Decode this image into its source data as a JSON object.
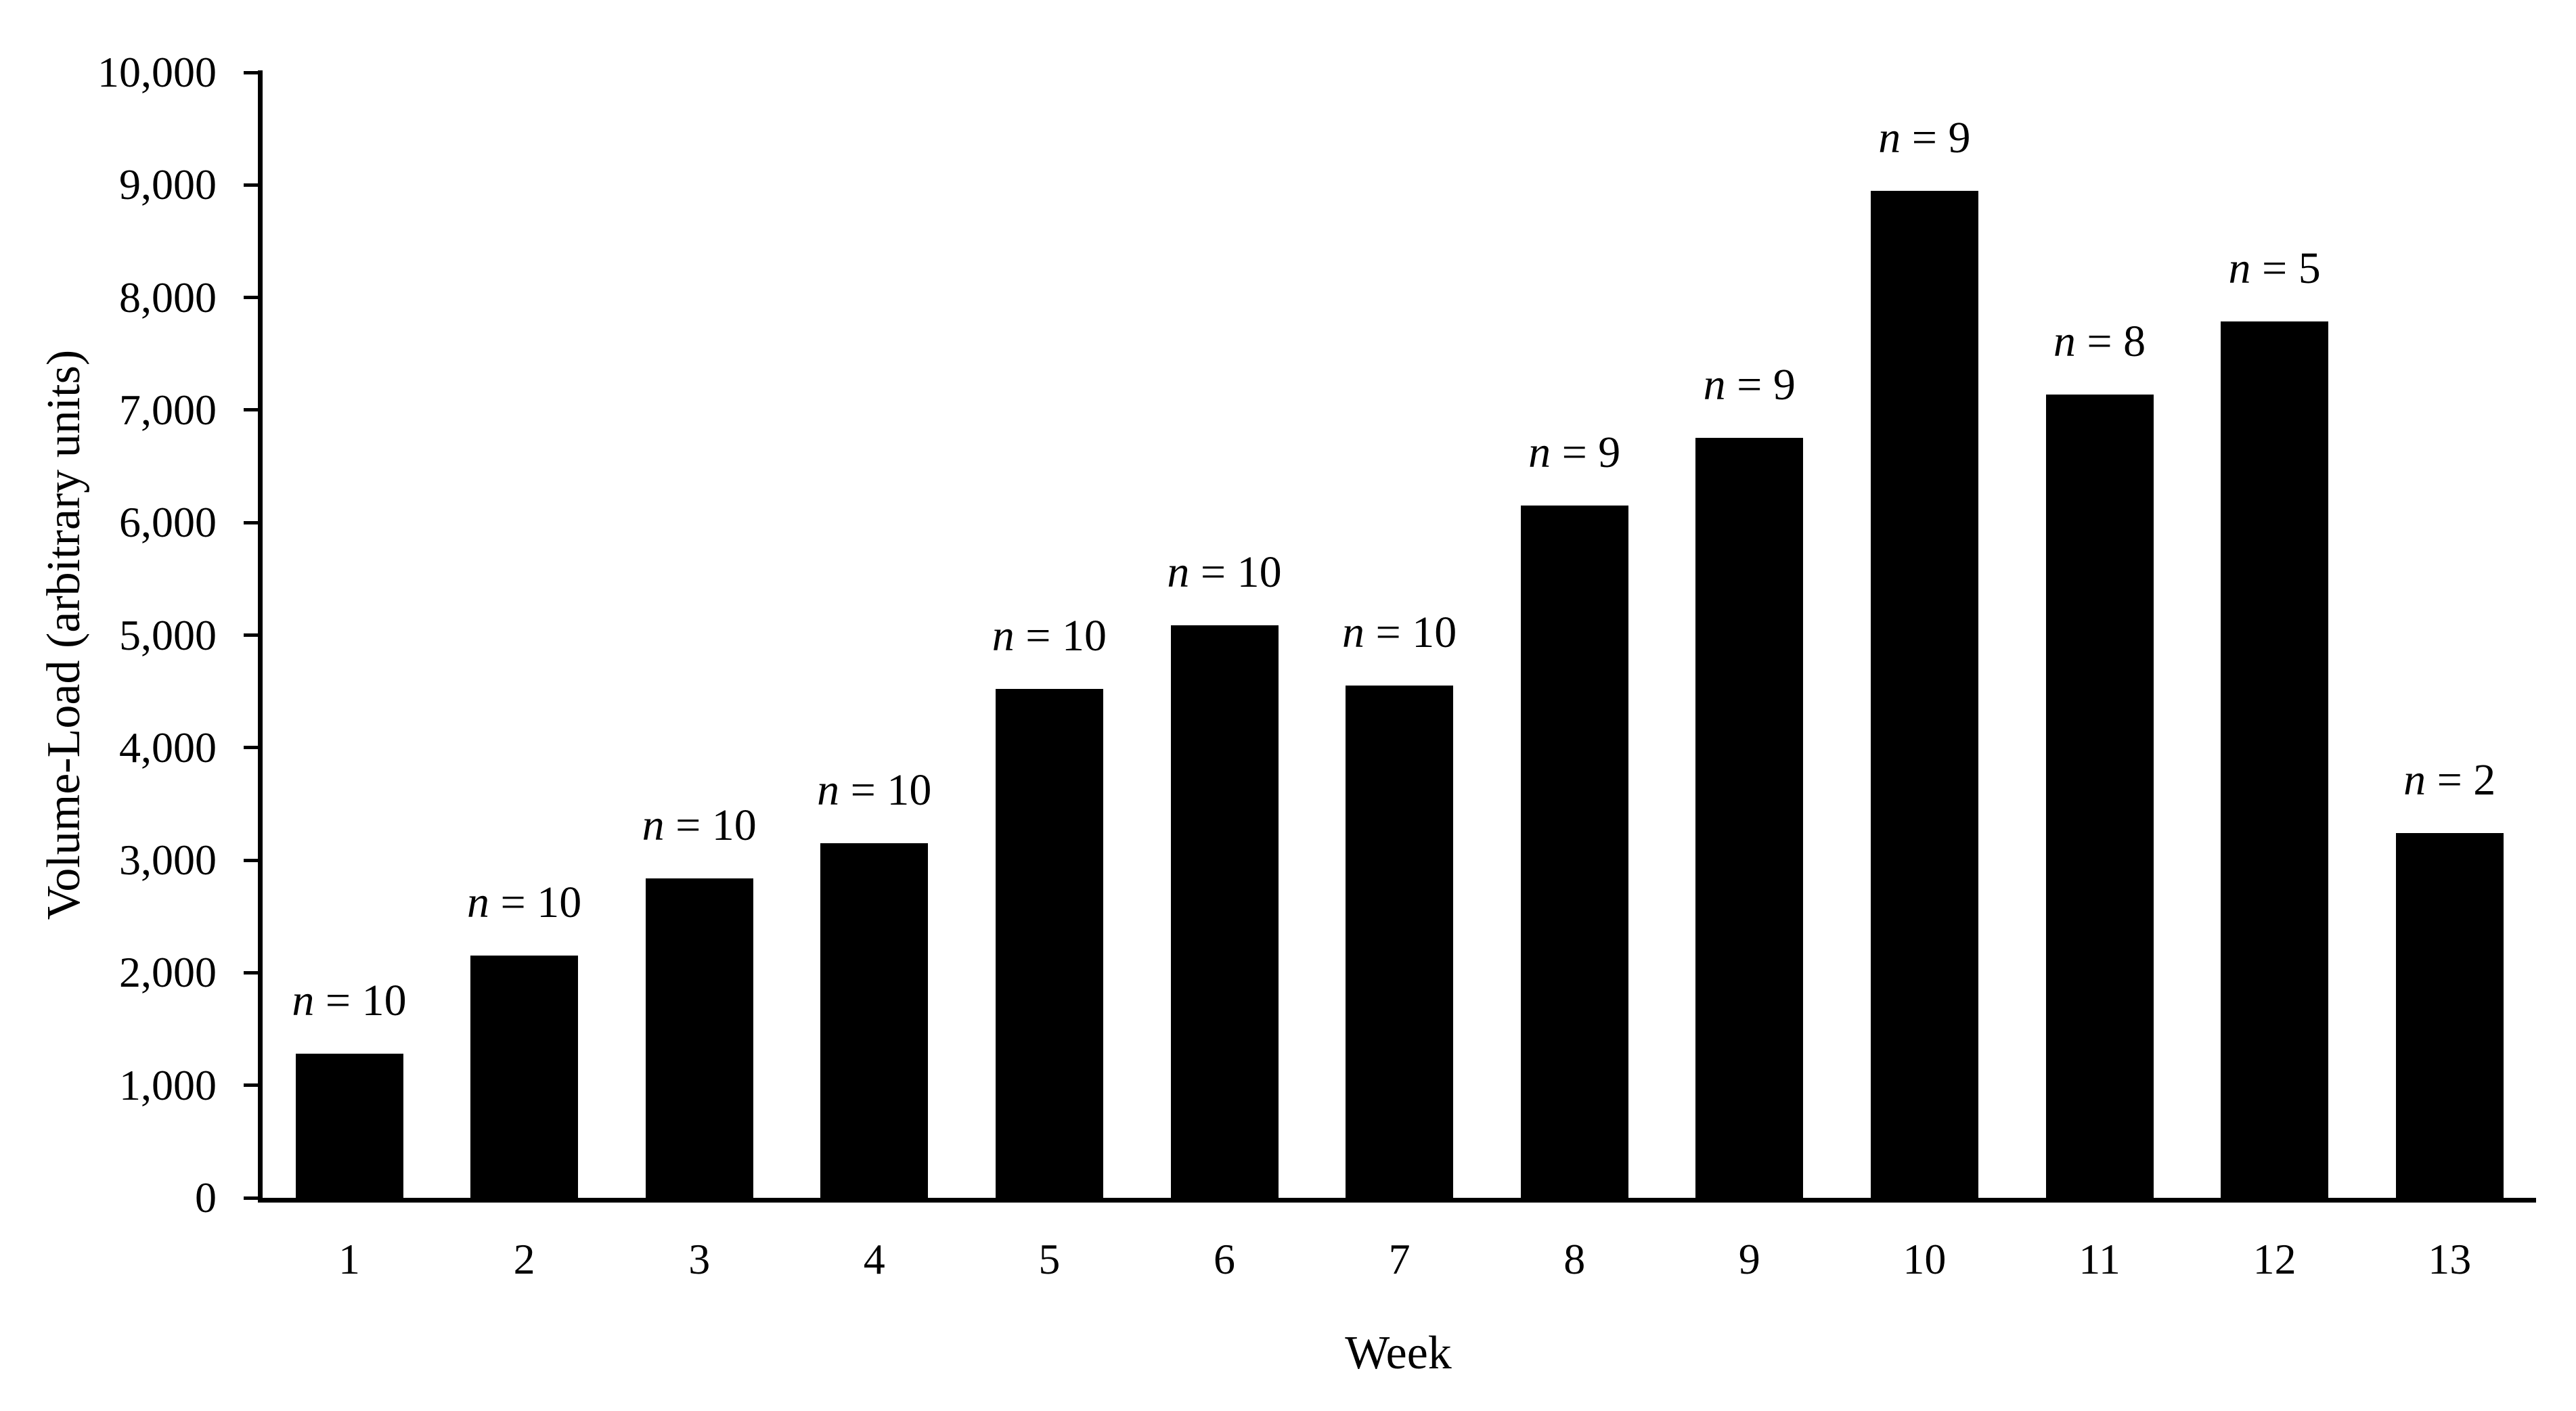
{
  "chart_data": {
    "type": "bar",
    "title": "",
    "xlabel": "Week",
    "ylabel": "Volume-Load (arbitrary units)",
    "categories": [
      "1",
      "2",
      "3",
      "4",
      "5",
      "6",
      "7",
      "8",
      "9",
      "10",
      "11",
      "12",
      "13"
    ],
    "values": [
      1280,
      2150,
      2840,
      3150,
      4520,
      5090,
      4550,
      6150,
      6750,
      8950,
      7140,
      7790,
      3240
    ],
    "bar_annotation_symbol": "n",
    "bar_annotation_values": [
      10,
      10,
      10,
      10,
      10,
      10,
      10,
      9,
      9,
      9,
      8,
      5,
      2
    ],
    "bar_annotation_texts": [
      "n = 10",
      "n = 10",
      "n = 10",
      "n = 10",
      "n = 10",
      "n = 10",
      "n = 10",
      "n = 9",
      "n = 9",
      "n = 9",
      "n = 8",
      "n = 5",
      "n = 2"
    ],
    "ylim": [
      0,
      10000
    ],
    "ytick_interval": 1000,
    "ytick_labels": [
      "0",
      "1,000",
      "2,000",
      "3,000",
      "4,000",
      "5,000",
      "6,000",
      "7,000",
      "8,000",
      "9,000",
      "10,000"
    ],
    "grid": false,
    "legend": null,
    "bar_color": "#000000",
    "axis_color": "#000000",
    "background_color": "#ffffff"
  }
}
